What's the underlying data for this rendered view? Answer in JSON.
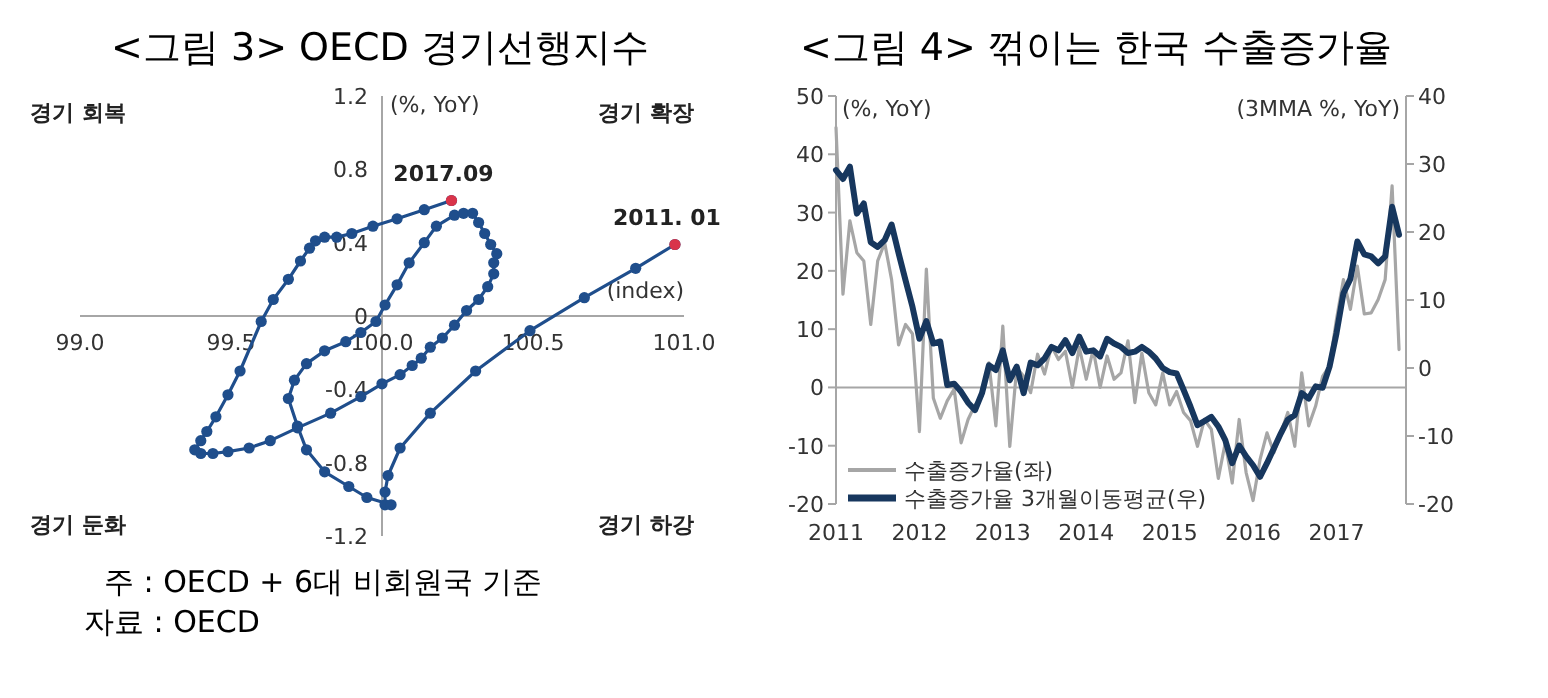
{
  "chart_data": [
    {
      "type": "line",
      "title": "<그림 3> OECD 경기선행지수",
      "xlabel": "(index)",
      "ylabel": "(%, YoY)",
      "xlim": [
        99,
        101
      ],
      "xticks": [
        {
          "value": 99,
          "label": "99.0"
        },
        99.5,
        {
          "value": 100,
          "label": "100.0"
        },
        100.5,
        {
          "value": 101,
          "label": "101.0"
        }
      ],
      "ylim": [
        -1.2,
        1.2
      ],
      "yticks": [
        -1.2,
        -0.8,
        -0.4,
        0,
        0.4,
        0.8,
        1.2
      ],
      "marker": "circle",
      "series": [
        {
          "color": "#1f4e8c",
          "line_style": "solid",
          "x": [
            100.97,
            100.84,
            100.67,
            100.49,
            100.31,
            100.16,
            100.06,
            100.02,
            100.01,
            100.01,
            100.03,
            99.95,
            99.89,
            99.81,
            99.75,
            99.72,
            99.69,
            99.71,
            99.75,
            99.81,
            99.88,
            99.93,
            99.98,
            100.01,
            100.05,
            100.09,
            100.14,
            100.18,
            100.24,
            100.27,
            100.3,
            100.32,
            100.34,
            100.36,
            100.38,
            100.37,
            100.37,
            100.35,
            100.32,
            100.28,
            100.24,
            100.2,
            100.16,
            100.13,
            100.1,
            100.06,
            100.0,
            99.93,
            99.83,
            99.72,
            99.63,
            99.56,
            99.49,
            99.44,
            99.4,
            99.38,
            99.4,
            99.42,
            99.45,
            99.49,
            99.53,
            99.6,
            99.64,
            99.69,
            99.73,
            99.76,
            99.78,
            99.81,
            99.85,
            99.9,
            99.97,
            100.05,
            100.14,
            100.23
          ],
          "values": [
            0.39,
            0.26,
            0.1,
            -0.08,
            -0.3,
            -0.53,
            -0.72,
            -0.87,
            -0.96,
            -1.03,
            -1.03,
            -0.99,
            -0.93,
            -0.85,
            -0.73,
            -0.6,
            -0.45,
            -0.35,
            -0.26,
            -0.19,
            -0.14,
            -0.09,
            -0.03,
            0.06,
            0.17,
            0.29,
            0.4,
            0.49,
            0.55,
            0.56,
            0.56,
            0.51,
            0.45,
            0.39,
            0.34,
            0.29,
            0.23,
            0.16,
            0.09,
            0.03,
            -0.05,
            -0.12,
            -0.17,
            -0.23,
            -0.27,
            -0.32,
            -0.37,
            -0.44,
            -0.53,
            -0.61,
            -0.68,
            -0.72,
            -0.74,
            -0.75,
            -0.75,
            -0.73,
            -0.68,
            -0.63,
            -0.55,
            -0.43,
            -0.3,
            -0.03,
            0.09,
            0.2,
            0.3,
            0.37,
            0.41,
            0.43,
            0.43,
            0.45,
            0.49,
            0.53,
            0.58,
            0.63
          ]
        },
        {
          "type": "scatter",
          "color": "#d9344a",
          "x": [
            100.97,
            100.23
          ],
          "values": [
            0.39,
            0.63
          ]
        }
      ],
      "annotations": [
        {
          "text": "2017.09",
          "x": 100.23,
          "y": 0.63
        },
        {
          "text": "2011. 01",
          "x": 100.97,
          "y": 0.39
        },
        "경기 회복",
        "경기 확장",
        "경기 둔화",
        "경기 하강",
        "주 : OECD + 6대 비회원국 기준",
        "자료 : OECD"
      ]
    },
    {
      "type": "line",
      "title": "<그림 4> 꺾이는 한국 수출증가율",
      "ylabel": "(%, YoY)",
      "y2label": "(3MMA %, YoY)",
      "xlim": [
        "2011-01",
        "2017-11"
      ],
      "xticks": [
        {
          "value": "2011-01",
          "label": "2011"
        },
        {
          "value": "2012-01",
          "label": "2012"
        },
        {
          "value": "2013-01",
          "label": "2013"
        },
        {
          "value": "2014-01",
          "label": "2014"
        },
        {
          "value": "2015-01",
          "label": "2015"
        },
        {
          "value": "2016-01",
          "label": "2016"
        },
        {
          "value": "2017-01",
          "label": "2017"
        }
      ],
      "ylim": [
        -20,
        50
      ],
      "yticks": [
        -20,
        -10,
        0,
        10,
        20,
        30,
        40,
        50
      ],
      "y2lim": [
        -20,
        40
      ],
      "y2ticks": [
        -20,
        -10,
        0,
        10,
        20,
        30,
        40
      ],
      "ref_lines": [
        {
          "axis": "y",
          "value": 0,
          "color": "#a6a6a6"
        }
      ],
      "line_style": "solid",
      "legend": "bottom left",
      "x": [
        "2011-01",
        "2011-02",
        "2011-03",
        "2011-04",
        "2011-05",
        "2011-06",
        "2011-07",
        "2011-08",
        "2011-09",
        "2011-10",
        "2011-11",
        "2011-12",
        "2012-01",
        "2012-02",
        "2012-03",
        "2012-04",
        "2012-05",
        "2012-06",
        "2012-07",
        "2012-08",
        "2012-09",
        "2012-10",
        "2012-11",
        "2012-12",
        "2013-01",
        "2013-02",
        "2013-03",
        "2013-04",
        "2013-05",
        "2013-06",
        "2013-07",
        "2013-08",
        "2013-09",
        "2013-10",
        "2013-11",
        "2013-12",
        "2014-01",
        "2014-02",
        "2014-03",
        "2014-04",
        "2014-05",
        "2014-06",
        "2014-07",
        "2014-08",
        "2014-09",
        "2014-10",
        "2014-11",
        "2014-12",
        "2015-01",
        "2015-02",
        "2015-03",
        "2015-04",
        "2015-05",
        "2015-06",
        "2015-07",
        "2015-08",
        "2015-09",
        "2015-10",
        "2015-11",
        "2015-12",
        "2016-01",
        "2016-02",
        "2016-03",
        "2016-04",
        "2016-05",
        "2016-06",
        "2016-07",
        "2016-08",
        "2016-09",
        "2016-10",
        "2016-11",
        "2016-12",
        "2017-01",
        "2017-02",
        "2017-03",
        "2017-04",
        "2017-05",
        "2017-06",
        "2017-07",
        "2017-08",
        "2017-09",
        "2017-10"
      ],
      "series": [
        {
          "name": "수출증가율(좌)",
          "color": "#a6a6a6",
          "values": [
            44.6,
            16.0,
            28.6,
            23.1,
            21.7,
            10.8,
            21.7,
            24.8,
            18.5,
            7.3,
            10.8,
            9.2,
            -7.6,
            20.3,
            -1.8,
            -5.3,
            -2.3,
            -0.3,
            -9.5,
            -5.5,
            -3.0,
            -1.5,
            4.2,
            -6.6,
            10.5,
            -10.1,
            3.4,
            1.9,
            -0.9,
            5.7,
            2.3,
            7.1,
            4.8,
            6.2,
            0.0,
            6.9,
            1.4,
            6.5,
            0.0,
            5.4,
            1.4,
            2.5,
            8.0,
            -2.6,
            5.9,
            -0.9,
            -3.0,
            2.5,
            -3.0,
            -0.7,
            -4.3,
            -5.7,
            -10.1,
            -5.5,
            -7.2,
            -15.6,
            -9.5,
            -16.4,
            -5.5,
            -14.6,
            -19.4,
            -12.4,
            -7.8,
            -11.2,
            -7.8,
            -4.3,
            -10.1,
            2.5,
            -6.6,
            -3.2,
            1.9,
            3.7,
            11.7,
            18.5,
            13.4,
            20.8,
            12.6,
            12.8,
            15.1,
            18.5,
            34.6,
            6.5
          ]
        },
        {
          "name": "수출증가율 3개월이동평균(우)",
          "color": "#17375e",
          "axis": "y2",
          "values": [
            29.1,
            27.8,
            29.6,
            22.7,
            24.2,
            18.5,
            17.8,
            18.8,
            21.1,
            16.9,
            12.9,
            9.0,
            4.3,
            6.9,
            3.6,
            3.9,
            -2.5,
            -2.3,
            -3.5,
            -5.1,
            -6.2,
            -3.7,
            0.4,
            -0.3,
            2.6,
            -1.8,
            0.2,
            -3.7,
            0.8,
            0.4,
            1.4,
            3.1,
            2.6,
            4.1,
            2.2,
            4.6,
            2.4,
            2.6,
            1.7,
            4.3,
            3.6,
            3.1,
            2.2,
            2.4,
            3.1,
            2.4,
            1.4,
            0.0,
            -0.6,
            -0.8,
            -3.2,
            -5.7,
            -8.4,
            -7.8,
            -7.2,
            -8.6,
            -10.6,
            -14.0,
            -11.4,
            -13.0,
            -14.3,
            -16.0,
            -14.0,
            -11.8,
            -9.6,
            -7.6,
            -6.9,
            -3.7,
            -4.5,
            -2.7,
            -2.9,
            0.2,
            5.1,
            11.0,
            13.1,
            18.6,
            16.7,
            16.4,
            15.4,
            16.4,
            23.7,
            19.6
          ]
        }
      ]
    }
  ]
}
